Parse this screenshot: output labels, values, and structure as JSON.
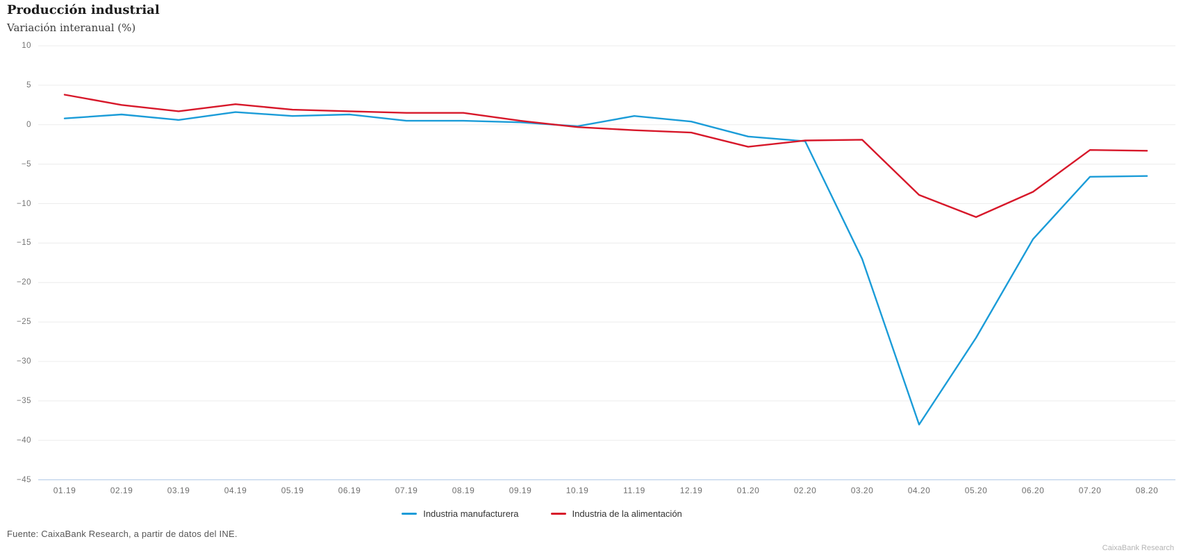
{
  "chart_data": {
    "type": "line",
    "title": "Producción industrial",
    "subtitle": "Variación interanual (%)",
    "xlabel": "",
    "ylabel": "",
    "ylim": [
      -45,
      10
    ],
    "ytick_step": 5,
    "grid": "horizontal",
    "legend_position": "bottom",
    "grid_color": "#ececec",
    "axis_line_color": "#aec8e6",
    "tick_color": "#757575",
    "yticks": [
      {
        "label": "10",
        "value": 10
      },
      {
        "label": "5",
        "value": 5
      },
      {
        "label": "0",
        "value": 0
      },
      {
        "label": "−5",
        "value": -5
      },
      {
        "label": "−10",
        "value": -10
      },
      {
        "label": "−15",
        "value": -15
      },
      {
        "label": "−20",
        "value": -20
      },
      {
        "label": "−25",
        "value": -25
      },
      {
        "label": "−30",
        "value": -30
      },
      {
        "label": "−35",
        "value": -35
      },
      {
        "label": "−40",
        "value": -40
      },
      {
        "label": "−45",
        "value": -45
      }
    ],
    "categories": [
      "01.19",
      "02.19",
      "03.19",
      "04.19",
      "05.19",
      "06.19",
      "07.19",
      "08.19",
      "09.19",
      "10.19",
      "11.19",
      "12.19",
      "01.20",
      "02.20",
      "03.20",
      "04.20",
      "05.20",
      "06.20",
      "07.20",
      "08.20"
    ],
    "series": [
      {
        "name": "Industria manufacturera",
        "color": "#1b9cd8",
        "values": [
          0.8,
          1.3,
          0.6,
          1.6,
          1.1,
          1.3,
          0.5,
          0.5,
          0.3,
          -0.2,
          1.1,
          0.4,
          -1.5,
          -2.1,
          -17.0,
          -38.0,
          -27.0,
          -14.5,
          -6.6,
          -6.5
        ]
      },
      {
        "name": "Industria de la alimentación",
        "color": "#d7182a",
        "values": [
          3.8,
          2.5,
          1.7,
          2.6,
          1.9,
          1.7,
          1.5,
          1.5,
          0.5,
          -0.3,
          -0.7,
          -1.0,
          -2.8,
          -2.0,
          -1.9,
          -8.9,
          -11.7,
          -8.5,
          -3.2,
          -3.3
        ]
      }
    ]
  },
  "footer": {
    "source": "Fuente: CaixaBank Research, a partir de datos del INE.",
    "watermark": "CaixaBank Research"
  }
}
